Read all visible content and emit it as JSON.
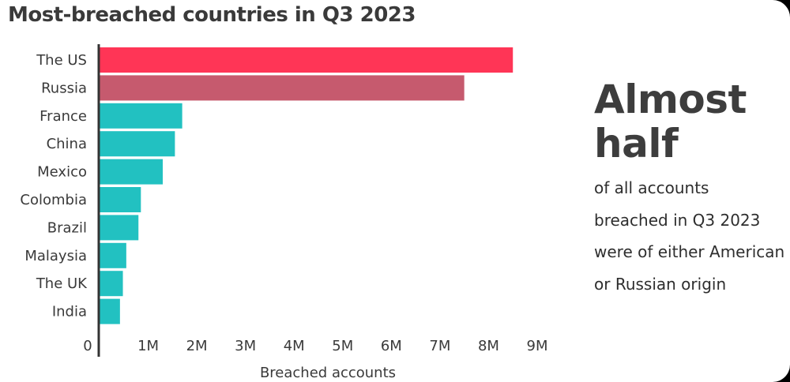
{
  "title": "Most-breached countries in Q3 2023",
  "callout": {
    "headline": "Almost half",
    "text": "of all accounts breached in Q3 2023 were of either American or Russian origin"
  },
  "colors": {
    "highlight": "#ff3556",
    "second": "#c65a6e",
    "default": "#22c1c1",
    "axis": "#333333"
  },
  "chart_data": {
    "type": "bar",
    "orientation": "horizontal",
    "categories": [
      "The US",
      "Russia",
      "France",
      "China",
      "Mexico",
      "Colombia",
      "Brazil",
      "Malaysia",
      "The UK",
      "India"
    ],
    "values": [
      8500000,
      7500000,
      1700000,
      1550000,
      1300000,
      850000,
      800000,
      550000,
      480000,
      420000
    ],
    "xlabel": "Breached accounts",
    "ylabel": "",
    "xlim": [
      0,
      9000000
    ],
    "xticks": [
      0,
      1000000,
      2000000,
      3000000,
      4000000,
      5000000,
      6000000,
      7000000,
      8000000,
      9000000
    ],
    "xtick_labels": [
      "0",
      "1M",
      "2M",
      "3M",
      "4M",
      "5M",
      "6M",
      "7M",
      "8M",
      "9M"
    ],
    "grid": false,
    "legend": "none"
  }
}
